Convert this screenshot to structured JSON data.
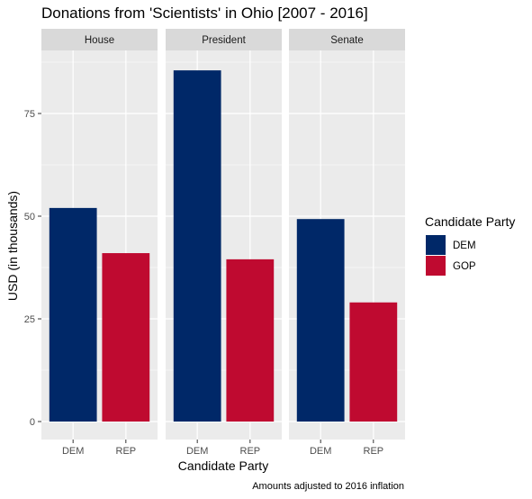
{
  "chart_data": {
    "type": "bar",
    "title": "Donations from 'Scientists' in Ohio [2007 - 2016]",
    "xlabel": "Candidate Party",
    "ylabel": "USD (in thousands)",
    "caption": "Amounts adjusted to 2016 inflation",
    "ylim": [
      0,
      90
    ],
    "yticks": [
      0,
      25,
      50,
      75
    ],
    "categories": [
      "DEM",
      "REP"
    ],
    "panels": [
      {
        "name": "House",
        "values": [
          52,
          41
        ]
      },
      {
        "name": "President",
        "values": [
          85.5,
          39.5
        ]
      },
      {
        "name": "Senate",
        "values": [
          49.3,
          29
        ]
      }
    ],
    "legend": {
      "title": "Candidate Party",
      "placement": "right",
      "items": [
        {
          "label": "DEM",
          "color": "#002868"
        },
        {
          "label": "GOP",
          "color": "#BF0A30"
        }
      ]
    },
    "grid": true,
    "colors": {
      "panel_bg": "#EBEBEB",
      "strip_bg": "#D9D9D9",
      "grid": "#FFFFFF"
    }
  }
}
